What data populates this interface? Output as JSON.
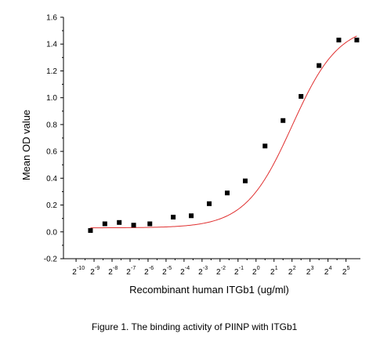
{
  "chart_data": {
    "type": "scatter",
    "xlabel": "Recombinant human ITGb1 (ug/ml)",
    "ylabel": "Mean OD value",
    "caption": "Figure 1. The binding activity of PIINP with ITGb1",
    "x_scale": "log2",
    "xlim_exponent": [
      -10.7,
      5.8
    ],
    "ylim": [
      -0.2,
      1.6
    ],
    "y_ticks": [
      -0.2,
      0.0,
      0.2,
      0.4,
      0.6,
      0.8,
      1.0,
      1.2,
      1.4,
      1.6
    ],
    "y_tick_labels": [
      "-0.2",
      "0.0",
      "0.2",
      "0.4",
      "0.6",
      "0.8",
      "1.0",
      "1.2",
      "1.4",
      "1.6"
    ],
    "x_tick_exponents": [
      -10,
      -9,
      -8,
      -7,
      -6,
      -5,
      -4,
      -3,
      -2,
      -1,
      0,
      1,
      2,
      3,
      4,
      5
    ],
    "x_tick_base": "2",
    "x_tick_exponent_labels": [
      "-10",
      "-9",
      "-8",
      "-7",
      "-6",
      "-5",
      "-4",
      "-3",
      "-2",
      "-1",
      "0",
      "1",
      "2",
      "3",
      "4",
      "5"
    ],
    "grid": false,
    "series": [
      {
        "marker": "square",
        "color": "#000000",
        "points": [
          {
            "x_exp": -9.2,
            "y": 0.01
          },
          {
            "x_exp": -8.4,
            "y": 0.06
          },
          {
            "x_exp": -7.6,
            "y": 0.07
          },
          {
            "x_exp": -6.8,
            "y": 0.05
          },
          {
            "x_exp": -5.9,
            "y": 0.06
          },
          {
            "x_exp": -4.6,
            "y": 0.11
          },
          {
            "x_exp": -3.6,
            "y": 0.12
          },
          {
            "x_exp": -2.6,
            "y": 0.21
          },
          {
            "x_exp": -1.6,
            "y": 0.29
          },
          {
            "x_exp": -0.6,
            "y": 0.38
          },
          {
            "x_exp": 0.5,
            "y": 0.64
          },
          {
            "x_exp": 1.5,
            "y": 0.83
          },
          {
            "x_exp": 2.5,
            "y": 1.01
          },
          {
            "x_exp": 3.5,
            "y": 1.24
          },
          {
            "x_exp": 4.6,
            "y": 1.43
          },
          {
            "x_exp": 5.6,
            "y": 1.43
          }
        ]
      }
    ],
    "fit": {
      "type": "sigmoid",
      "color": "#e03030",
      "bottom": 0.03,
      "top": 1.55,
      "center_exp": 2.0,
      "width": 1.3,
      "x_exp_range": [
        -9.2,
        5.6
      ]
    }
  }
}
